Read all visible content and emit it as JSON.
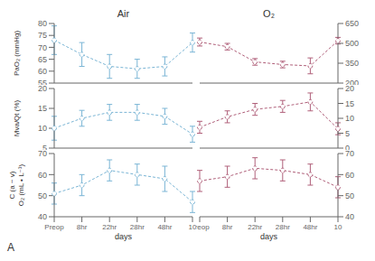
{
  "chart_data": [
    {
      "type": "line",
      "title": "Air",
      "ylabel": "PaO₂ (mmHg)",
      "categories": [
        "Preop",
        "8hr",
        "22hr",
        "28hr",
        "48hr",
        "10"
      ],
      "values": [
        73,
        67,
        62,
        61,
        62,
        72
      ],
      "errors": [
        6,
        5,
        5,
        4,
        4,
        4
      ],
      "color": "#7ab5d5",
      "ylim": [
        55,
        80
      ],
      "yticks": [
        55,
        60,
        65,
        70,
        75,
        80
      ],
      "marker": "circle",
      "line_style": "dashed",
      "tick_labels": "y"
    },
    {
      "type": "line",
      "title": "O₂",
      "categories": [
        "Preop",
        "8hr",
        "22hr",
        "28hr",
        "48hr",
        "10"
      ],
      "values": [
        510,
        475,
        360,
        340,
        330,
        520
      ],
      "errors": [
        30,
        25,
        25,
        25,
        60,
        25
      ],
      "color": "#b0607a",
      "ylim": [
        200,
        650
      ],
      "yticks": [
        200,
        350,
        500,
        650
      ],
      "marker": "circle",
      "line_style": "dashed",
      "tick_labels": "y"
    },
    {
      "type": "line",
      "ylabel": "Ṃva/Qt (%)",
      "categories": [
        "Preop",
        "8hr",
        "22hr",
        "28hr",
        "48hr",
        "10"
      ],
      "values": [
        10,
        12.5,
        14,
        14,
        13,
        8.5
      ],
      "errors": [
        3,
        2,
        2,
        2,
        2,
        2
      ],
      "color": "#7ab5d5",
      "ylim": [
        5,
        20
      ],
      "yticks": [
        5,
        10,
        15,
        20
      ],
      "marker": "circle",
      "line_style": "dashed",
      "tick_labels": "y"
    },
    {
      "type": "line",
      "categories": [
        "Preop",
        "8hr",
        "22hr",
        "28hr",
        "48hr",
        "10"
      ],
      "values": [
        7,
        10.5,
        13,
        14,
        15.5,
        6.5
      ],
      "errors": [
        2,
        2,
        2,
        2,
        3,
        2
      ],
      "color": "#b0607a",
      "ylim": [
        0,
        20
      ],
      "yticks": [
        0,
        5,
        10,
        15,
        20
      ],
      "marker": "circle",
      "line_style": "dashed",
      "tick_labels": "y"
    },
    {
      "type": "line",
      "ylabel": "C (a − v)\nO₂ (mL • L⁻¹)",
      "xlabel": "days",
      "annotation": "A",
      "categories": [
        "Preop",
        "8hr",
        "22hr",
        "28hr",
        "48hr",
        "10"
      ],
      "values": [
        51,
        55,
        62,
        60,
        58,
        47
      ],
      "errors": [
        5,
        5,
        5,
        5,
        6,
        5
      ],
      "color": "#7ab5d5",
      "ylim": [
        40,
        70
      ],
      "yticks": [
        40,
        50,
        60,
        70
      ],
      "marker": "circle",
      "line_style": "dashed"
    },
    {
      "type": "line",
      "xlabel": "days",
      "categories": [
        "Preop",
        "8hr",
        "22hr",
        "28hr",
        "48hr",
        "10"
      ],
      "values": [
        57,
        59,
        63,
        62,
        60,
        54
      ],
      "errors": [
        5,
        5,
        5,
        5,
        5,
        5
      ],
      "color": "#b0607a",
      "ylim": [
        40,
        70
      ],
      "yticks": [
        40,
        50,
        60,
        70
      ],
      "marker": "circle",
      "line_style": "dashed"
    }
  ]
}
